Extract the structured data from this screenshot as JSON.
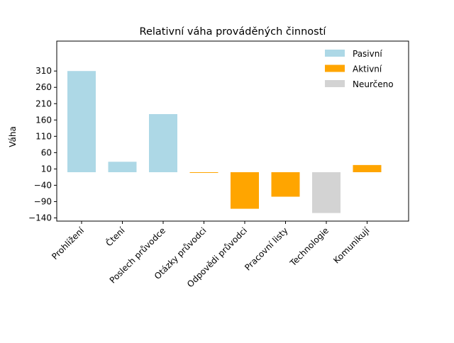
{
  "chart_data": {
    "type": "bar",
    "title": "Relativní váha prováděných činností",
    "xlabel": "",
    "ylabel": "Váha",
    "categories": [
      "Prohlížení",
      "Čtení",
      "Poslech průvodce",
      "Otázky průvodci",
      "Odpovědi průvodci",
      "Pracovní listy",
      "Technologie",
      "Komunikují"
    ],
    "values": [
      310,
      32,
      178,
      -2,
      -112,
      -75,
      -125,
      22
    ],
    "groups": [
      "Pasivní",
      "Pasivní",
      "Pasivní",
      "Aktivní",
      "Aktivní",
      "Aktivní",
      "Neurčeno",
      "Aktivní"
    ],
    "legend": [
      {
        "name": "Pasivní",
        "color": "#add8e6"
      },
      {
        "name": "Aktivní",
        "color": "#ffa500"
      },
      {
        "name": "Neurčeno",
        "color": "#d3d3d3"
      }
    ],
    "legend_position": "top-right",
    "yticks": [
      310,
      260,
      210,
      160,
      110,
      60,
      10,
      -40,
      -90,
      -140
    ],
    "ylim": [
      -150,
      380
    ],
    "grid": false
  }
}
